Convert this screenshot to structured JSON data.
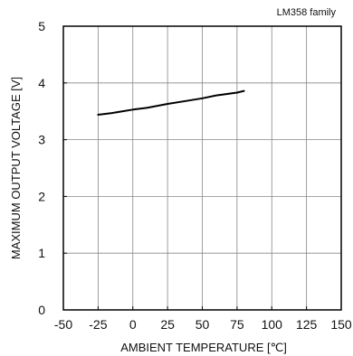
{
  "chart_data": {
    "type": "line",
    "annotation": "LM358  family",
    "xlabel": "AMBIENT TEMPERATURE [℃]",
    "ylabel": "MAXIMUM OUTPUT VOLTAGE [V]",
    "xlim": [
      -50,
      150
    ],
    "ylim": [
      0,
      5
    ],
    "x_ticks": [
      "-50",
      "-25",
      "0",
      "25",
      "50",
      "75",
      "100",
      "125",
      "150"
    ],
    "y_ticks": [
      "0",
      "1",
      "2",
      "3",
      "4",
      "5"
    ],
    "grid": true,
    "legend": "none",
    "series": [
      {
        "color": "#000000",
        "x": [
          -25,
          -15,
          0,
          10,
          25,
          40,
          50,
          60,
          75,
          80
        ],
        "y": [
          3.44,
          3.47,
          3.53,
          3.56,
          3.63,
          3.69,
          3.73,
          3.78,
          3.83,
          3.86
        ]
      }
    ]
  }
}
